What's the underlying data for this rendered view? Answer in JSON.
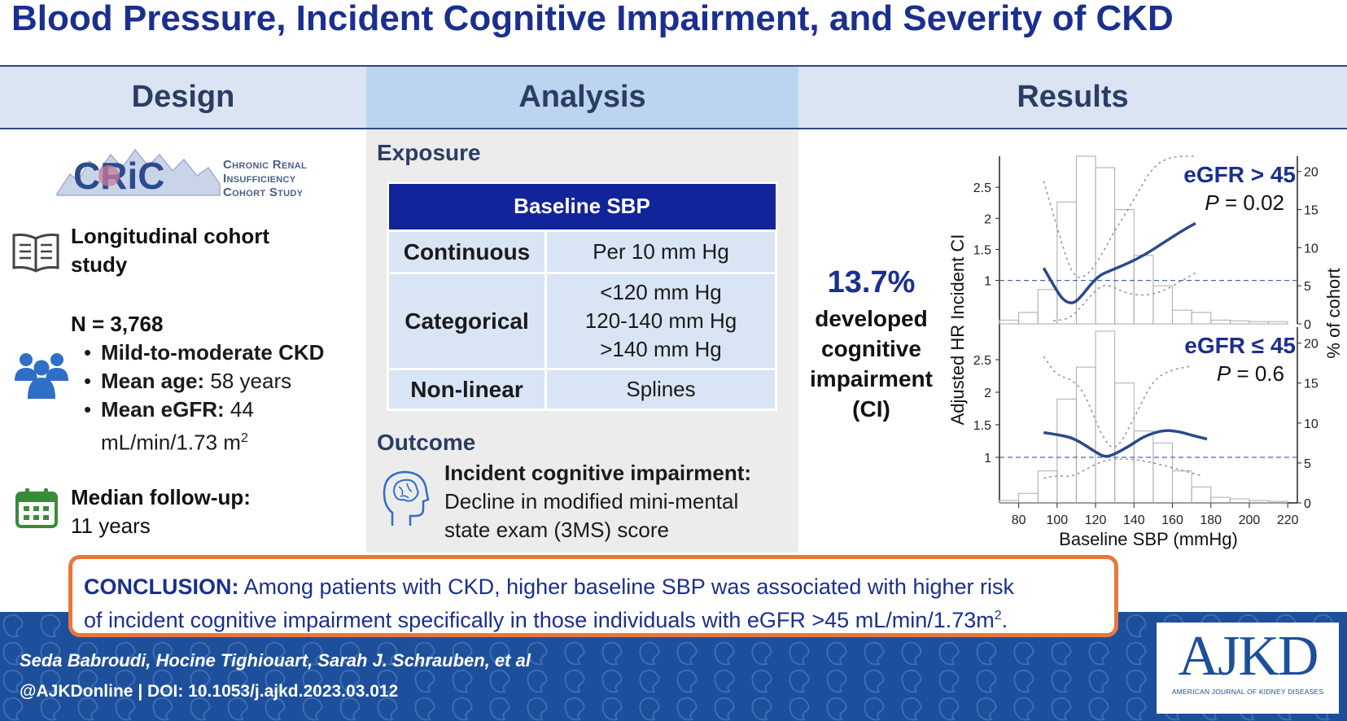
{
  "title": "Blood Pressure, Incident Cognitive Impairment, and Severity of CKD",
  "headers": {
    "design": "Design",
    "analysis": "Analysis",
    "results": "Results"
  },
  "design": {
    "cric_logo_word": "CRiC",
    "cric_line1": "Chronic Renal",
    "cric_line2": "Insufficiency",
    "cric_line3": "Cohort Study",
    "study_type_line1": "Longitudinal cohort",
    "study_type_line2": "study",
    "n_label": "N = 3,768",
    "bullet1": "Mild-to-moderate CKD",
    "bullet2_label": "Mean age:",
    "bullet2_value": " 58 years",
    "bullet3_label": "Mean eGFR:",
    "bullet3_value": " 44",
    "bullet3_unit": "mL/min/1.73 m",
    "bullet3_sup": "2",
    "followup_label": "Median follow-up:",
    "followup_value": "11 years"
  },
  "analysis": {
    "exposure_label": "Exposure",
    "table_header": "Baseline SBP",
    "rows": [
      {
        "key": "Continuous",
        "value": [
          "Per 10 mm Hg"
        ]
      },
      {
        "key": "Categorical",
        "value": [
          "<120 mm Hg",
          "120-140 mm Hg",
          ">140 mm Hg"
        ]
      },
      {
        "key": "Non-linear",
        "value": [
          "Splines"
        ]
      }
    ],
    "outcome_label": "Outcome",
    "outcome_title": "Incident cognitive impairment:",
    "outcome_desc_line1": "Decline in modified mini-mental",
    "outcome_desc_line2": "state exam (3MS) score"
  },
  "results": {
    "pct": "13.7%",
    "desc_line1": "developed",
    "desc_line2": "cognitive",
    "desc_line3": "impairment",
    "desc_line4": "(CI)"
  },
  "chart_data": {
    "type": "line",
    "x_label": "Baseline SBP (mmHg)",
    "y_left_label": "Adjusted HR Incident CI",
    "y_right_label": "% of cohort",
    "x_ticks": [
      80,
      100,
      120,
      140,
      160,
      180,
      200,
      220
    ],
    "x_range": [
      70,
      225
    ],
    "panels": [
      {
        "label": "eGFR > 45",
        "p_label": "P",
        "p_value": " = 0.02",
        "y_left_ticks": [
          1,
          1.5,
          2,
          2.5
        ],
        "y_left_range": [
          0.3,
          3.0
        ],
        "y_right_ticks": [
          0,
          5,
          10,
          15,
          20
        ],
        "y_right_range": [
          0,
          22
        ],
        "reference_line": 1,
        "histogram": {
          "bin_starts": [
            70,
            80,
            90,
            100,
            110,
            120,
            130,
            140,
            150,
            160,
            170,
            180,
            190,
            200,
            210
          ],
          "bin_width": 10,
          "pct": [
            0.5,
            1.5,
            4.5,
            16,
            22,
            20.5,
            15,
            9,
            5,
            1.8,
            1.5,
            0.5,
            0.4,
            0.3,
            0.3
          ]
        },
        "hr_curve": {
          "x": [
            93,
            98,
            103,
            108,
            112,
            117,
            122,
            127,
            135,
            145,
            155,
            165,
            172
          ],
          "y": [
            1.2,
            0.93,
            0.68,
            0.62,
            0.72,
            0.92,
            1.08,
            1.15,
            1.25,
            1.4,
            1.6,
            1.8,
            1.92
          ]
        },
        "ci_upper": {
          "x": [
            93,
            100,
            108,
            115,
            122,
            130,
            140,
            150,
            160,
            172
          ],
          "y": [
            2.6,
            1.85,
            1.05,
            1.05,
            1.35,
            1.8,
            2.3,
            2.85,
            3.1,
            3.2
          ]
        },
        "ci_lower": {
          "x": [
            98,
            106,
            112,
            118,
            125,
            135,
            145,
            155,
            165,
            172
          ],
          "y": [
            0.35,
            0.38,
            0.55,
            0.78,
            0.96,
            0.8,
            0.75,
            0.82,
            1.0,
            1.12
          ]
        }
      },
      {
        "label": "eGFR ≤ 45",
        "p_label": "P",
        "p_value": " = 0.6",
        "y_left_ticks": [
          1,
          1.5,
          2,
          2.5
        ],
        "y_left_range": [
          0.3,
          3.0
        ],
        "y_right_ticks": [
          0,
          5,
          10,
          15,
          20
        ],
        "y_right_range": [
          0,
          22
        ],
        "reference_line": 1,
        "histogram": {
          "bin_starts": [
            70,
            80,
            90,
            100,
            110,
            120,
            130,
            140,
            150,
            160,
            170,
            180,
            190,
            200,
            210
          ],
          "bin_width": 10,
          "pct": [
            0.3,
            1.2,
            4,
            13,
            17,
            21.5,
            15,
            9,
            7.5,
            4,
            2,
            0.7,
            0.5,
            0.3,
            0.2
          ]
        },
        "hr_curve": {
          "x": [
            93,
            100,
            108,
            115,
            120,
            125,
            130,
            138,
            145,
            155,
            163,
            170,
            178
          ],
          "y": [
            1.38,
            1.35,
            1.3,
            1.18,
            1.08,
            1.0,
            1.05,
            1.18,
            1.32,
            1.42,
            1.4,
            1.34,
            1.28
          ]
        },
        "ci_upper": {
          "x": [
            93,
            100,
            108,
            115,
            122,
            130,
            140,
            150,
            160,
            170
          ],
          "y": [
            2.55,
            2.25,
            2.2,
            1.95,
            1.4,
            1.05,
            1.6,
            2.2,
            2.35,
            2.4
          ]
        },
        "ci_lower": {
          "x": [
            93,
            100,
            108,
            115,
            125,
            135,
            145,
            155,
            165,
            175
          ],
          "y": [
            0.68,
            0.72,
            0.7,
            0.82,
            0.96,
            0.98,
            0.95,
            0.88,
            0.8,
            0.72
          ]
        }
      }
    ]
  },
  "conclusion": {
    "label": "CONCLUSION:",
    "text1": " Among patients with CKD, higher baseline SBP was associated with higher risk",
    "text2": "of incident cognitive impairment specifically in those individuals with eGFR >45 mL/min/1.73m",
    "sup": "2",
    "end": "."
  },
  "footer": {
    "authors": "Seda Babroudi, Hocine Tighiouart, Sarah J. Schrauben, et al",
    "doi": "@AJKDonline | DOI: 10.1053/j.ajkd.2023.03.012",
    "logo": "AJKD",
    "logo_sub": "AMERICAN JOURNAL OF KIDNEY DISEASES"
  },
  "colors": {
    "navy": "#1b2f8f",
    "header_bg": "#dbe4f2",
    "analysis_header_bg": "#bcd5ee",
    "table_header": "#12249a",
    "orange": "#e8773a",
    "footer_blue": "#1d4f9a",
    "curve": "#2c4a8c"
  }
}
